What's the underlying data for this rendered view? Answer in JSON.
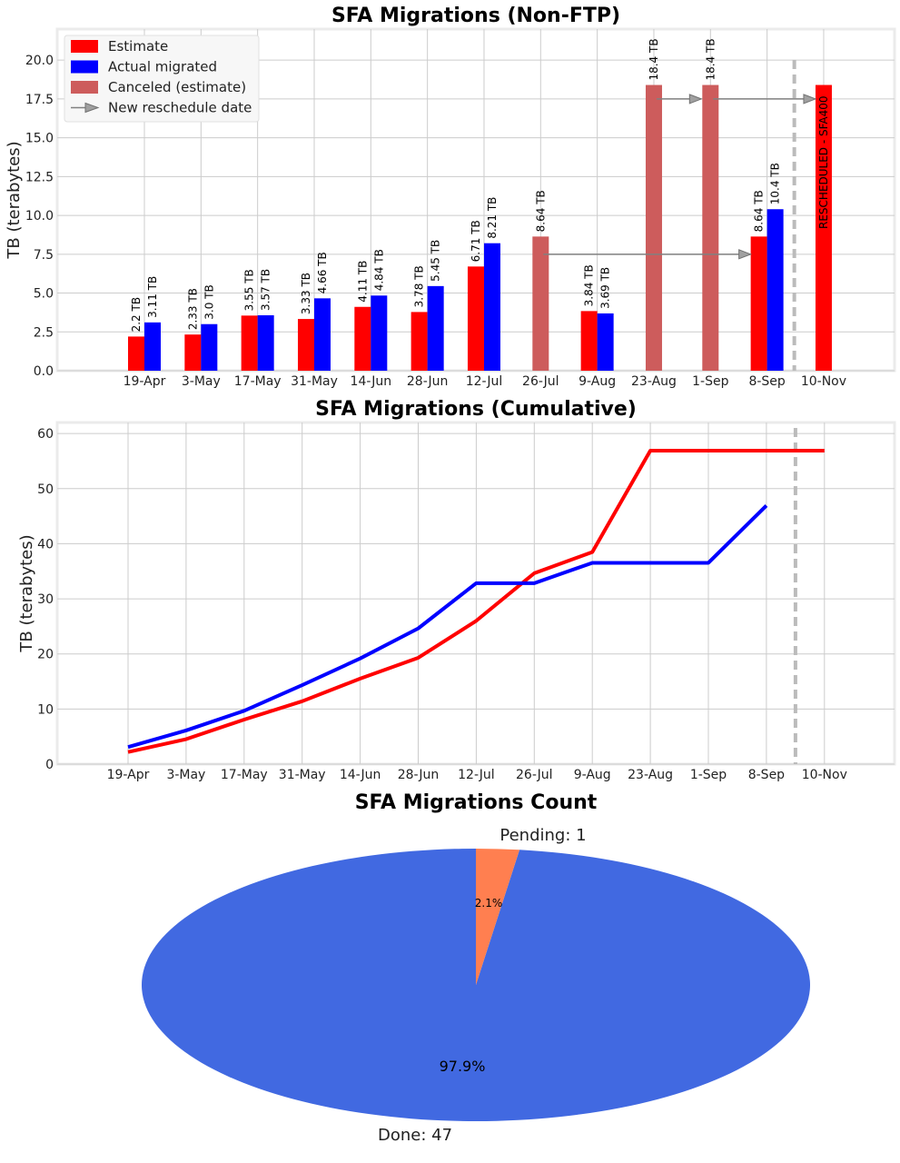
{
  "categories": [
    "19-Apr",
    "3-May",
    "17-May",
    "31-May",
    "14-Jun",
    "28-Jun",
    "12-Jul",
    "26-Jul",
    "9-Aug",
    "23-Aug",
    "1-Sep",
    "8-Sep",
    "10-Nov"
  ],
  "colors": {
    "estimate": "#ff0000",
    "actual": "#0000ff",
    "canceled": "#cd5c5c",
    "arrow": "#808080",
    "resched_line": "#bbbbbb",
    "pie_done": "#4169e1",
    "pie_pending": "#ff7f50"
  },
  "chart_data": [
    {
      "type": "bar",
      "title": "SFA Migrations (Non-FTP)",
      "ylabel": "TB (terabytes)",
      "xlabel": "",
      "ylim": [
        0,
        22
      ],
      "yticks": [
        "0.0",
        "2.5",
        "5.0",
        "7.5",
        "10.0",
        "12.5",
        "15.0",
        "17.5",
        "20.0"
      ],
      "grid": true,
      "legend_position": "top-left",
      "legend": [
        "Estimate",
        "Actual migrated",
        "Canceled (estimate)",
        "New reschedule date"
      ],
      "series": [
        {
          "name": "Estimate",
          "values": [
            2.2,
            2.33,
            3.55,
            3.33,
            4.11,
            3.78,
            6.71,
            null,
            3.84,
            null,
            null,
            8.64,
            18.4
          ]
        },
        {
          "name": "Actual migrated",
          "values": [
            3.11,
            3.0,
            3.57,
            4.66,
            4.84,
            5.45,
            8.21,
            null,
            3.69,
            null,
            null,
            10.4,
            null
          ]
        },
        {
          "name": "Canceled (estimate)",
          "values": [
            null,
            null,
            null,
            null,
            null,
            null,
            null,
            8.64,
            null,
            18.4,
            18.4,
            null,
            null
          ]
        }
      ],
      "bar_labels": {
        "estimate": [
          "2.2 TB",
          "2.33 TB",
          "3.55 TB",
          "3.33 TB",
          "4.11 TB",
          "3.78 TB",
          "6.71 TB",
          null,
          "3.84 TB",
          null,
          null,
          "8.64 TB",
          null
        ],
        "actual": [
          "3.11 TB",
          "3.0 TB",
          "3.57 TB",
          "4.66 TB",
          "4.84 TB",
          "5.45 TB",
          "8.21 TB",
          null,
          "3.69 TB",
          null,
          null,
          "10.4 TB",
          null
        ],
        "canceled": [
          null,
          null,
          null,
          null,
          null,
          null,
          null,
          "8.64 TB",
          null,
          "18.4 TB",
          "18.4 TB",
          null,
          null
        ]
      },
      "annotation": "RESCHEDULED - SFA400",
      "reschedule_arrows": [
        {
          "from": "26-Jul",
          "to": "8-Sep",
          "y": 7.5
        },
        {
          "from": "23-Aug",
          "to": "1-Sep",
          "y": 17.5
        },
        {
          "from": "1-Sep",
          "to": "10-Nov",
          "y": 17.5
        }
      ]
    },
    {
      "type": "line",
      "title": "SFA Migrations (Cumulative)",
      "ylabel": "TB (terabytes)",
      "xlabel": "",
      "ylim": [
        0,
        62
      ],
      "yticks": [
        "0",
        "10",
        "20",
        "30",
        "40",
        "50",
        "60"
      ],
      "grid": true,
      "series": [
        {
          "name": "",
          "color": "#ff0000",
          "values": [
            2.2,
            4.53,
            8.08,
            11.41,
            15.52,
            19.3,
            26.01,
            34.65,
            38.49,
            56.89,
            56.89,
            56.89,
            56.89
          ]
        },
        {
          "name": "",
          "color": "#0000ff",
          "values": [
            3.11,
            6.11,
            9.68,
            14.34,
            19.18,
            24.63,
            32.84,
            32.84,
            36.53,
            36.53,
            36.53,
            46.93,
            null
          ]
        }
      ]
    },
    {
      "type": "pie",
      "title": "SFA Migrations Count",
      "slices": [
        {
          "label": "Pending: 1",
          "value": 1,
          "pct": "2.1%"
        },
        {
          "label": "Done: 47",
          "value": 47,
          "pct": "97.9%"
        }
      ]
    }
  ]
}
